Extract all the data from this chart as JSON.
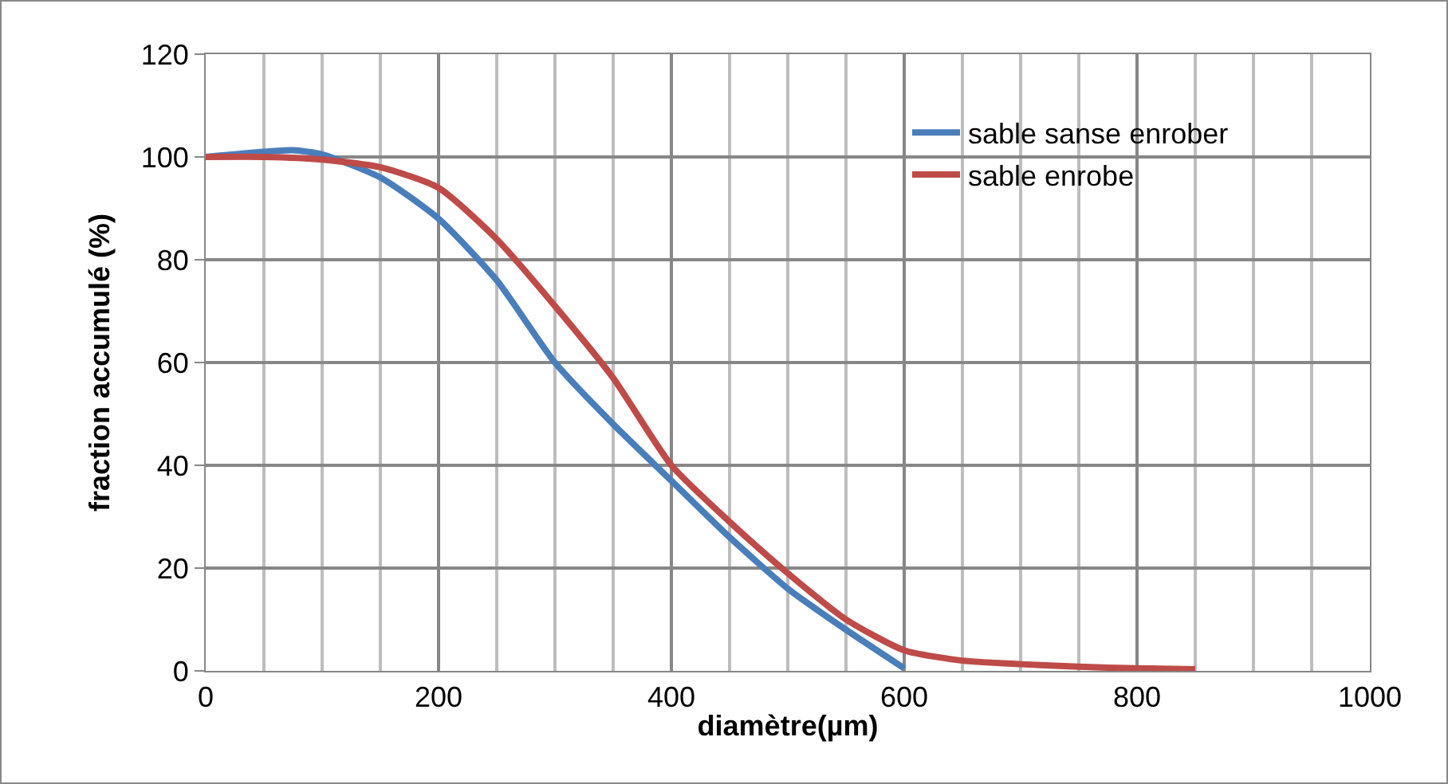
{
  "chart_data": {
    "type": "line",
    "xlabel": "diamètre(µm)",
    "ylabel": "fraction accumulé (%)",
    "xlim": [
      0,
      1000
    ],
    "xticks": [
      0,
      200,
      400,
      600,
      800,
      1000
    ],
    "ylim": [
      0,
      120
    ],
    "yticks": [
      0,
      20,
      40,
      60,
      80,
      100,
      120
    ],
    "grid": true,
    "legend": "top right",
    "marker": "none",
    "line_style": "solid",
    "series": [
      {
        "name": "sable sanse enrober",
        "color": "#4a7ebb",
        "x": [
          0,
          50,
          75,
          100,
          150,
          200,
          250,
          300,
          350,
          400,
          450,
          500,
          550,
          600
        ],
        "values": [
          100,
          101,
          101.3,
          100.5,
          96,
          88,
          76,
          60,
          48,
          37,
          26,
          16,
          8,
          0.5
        ]
      },
      {
        "name": "sable enrobe",
        "color": "#be4b48",
        "x": [
          0,
          50,
          100,
          150,
          200,
          250,
          300,
          350,
          400,
          450,
          500,
          550,
          600,
          650,
          700,
          750,
          800,
          850
        ],
        "values": [
          100,
          100,
          99.5,
          98,
          94,
          84,
          71,
          57,
          40,
          29,
          19,
          10,
          4,
          2,
          1.3,
          0.8,
          0.5,
          0.3
        ]
      }
    ]
  }
}
